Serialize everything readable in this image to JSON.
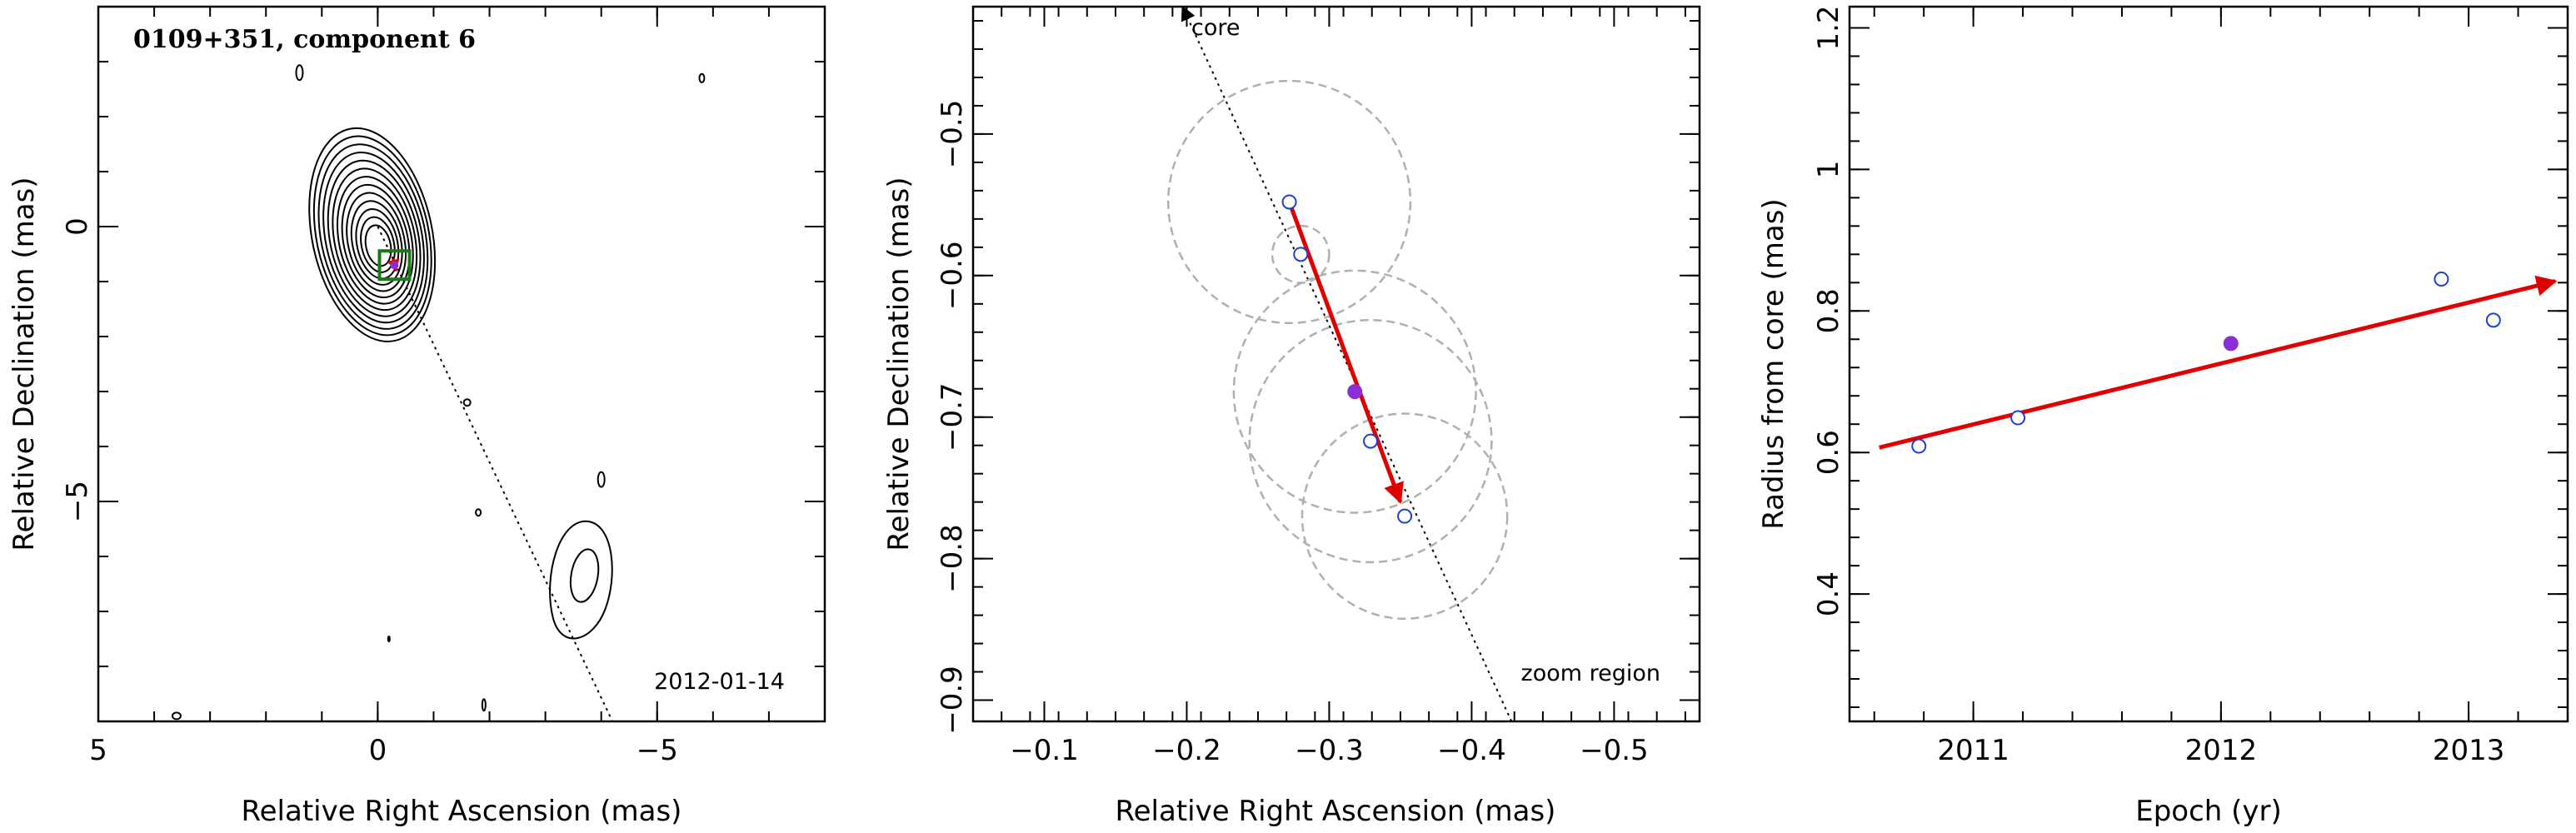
{
  "chart_data": [
    {
      "type": "contour",
      "title": "0109+351, component 6",
      "date_label": "2012-01-14",
      "xlabel": "Relative Right Ascension (mas)",
      "ylabel": "Relative Declination (mas)",
      "xlim": [
        5,
        -8
      ],
      "ylim": [
        -9,
        4
      ],
      "x_ticks": [
        5,
        0,
        -5
      ],
      "y_ticks": [
        0,
        -5
      ],
      "contour_centers": [
        {
          "x": 0.1,
          "y": -0.15
        },
        {
          "x": -3.7,
          "y": -6.5
        }
      ],
      "contour_levels": 13,
      "component_marker": {
        "x": -0.3,
        "y": -0.7
      },
      "jet_line": {
        "from": [
          0.0,
          0.0
        ],
        "to": [
          -4.2,
          -9.0
        ]
      },
      "colors": {
        "marker_box": "#1a7a1a",
        "marker_fill": "#8a2fd6",
        "arrow": "#e00000"
      }
    },
    {
      "type": "scatter",
      "xlabel": "Relative Right Ascension (mas)",
      "ylabel": "Relative Declination (mas)",
      "xlim": [
        -0.05,
        -0.56
      ],
      "ylim": [
        -0.915,
        -0.41
      ],
      "x_ticks": [
        -0.1,
        -0.2,
        -0.3,
        -0.4,
        -0.5
      ],
      "x_tick_labels": [
        "−0.1",
        "−0.2",
        "−0.3",
        "−0.4",
        "−0.5"
      ],
      "y_ticks": [
        -0.5,
        -0.6,
        -0.7,
        -0.8,
        -0.9
      ],
      "y_tick_labels": [
        "−0.5",
        "−0.6",
        "−0.7",
        "−0.8",
        "−0.9"
      ],
      "points": [
        {
          "x": -0.272,
          "y": -0.548,
          "r": 0.085,
          "filled": false
        },
        {
          "x": -0.28,
          "y": -0.585,
          "r": 0.02,
          "filled": false
        },
        {
          "x": -0.318,
          "y": -0.682,
          "r": 0.085,
          "filled": true
        },
        {
          "x": -0.329,
          "y": -0.717,
          "r": 0.085,
          "filled": false
        },
        {
          "x": -0.353,
          "y": -0.77,
          "r": 0.072,
          "filled": false
        }
      ],
      "motion_arrow": {
        "from": [
          -0.272,
          -0.548
        ],
        "to": [
          -0.35,
          -0.76
        ]
      },
      "core_line": {
        "from": [
          -0.197,
          -0.41
        ],
        "to": [
          -0.428,
          -0.915
        ]
      },
      "annotations": {
        "core_label": "core",
        "zoom_label": "zoom region"
      },
      "colors": {
        "point": "#1f3fd6",
        "filled_point": "#8a2fd6",
        "arrow": "#e00000",
        "circle": "#b0b0b0"
      }
    },
    {
      "type": "scatter",
      "xlabel": "Epoch (yr)",
      "ylabel": "Radius from core (mas)",
      "xlim": [
        2010.5,
        2013.4
      ],
      "ylim": [
        0.22,
        1.23
      ],
      "x_ticks": [
        2011,
        2012,
        2013
      ],
      "y_ticks": [
        0.4,
        0.6,
        0.8,
        1.0,
        1.2
      ],
      "y_tick_labels": [
        "0.4",
        "0.6",
        "0.8",
        "1",
        "1.2"
      ],
      "points": [
        {
          "x": 2010.78,
          "y": 0.609,
          "filled": false
        },
        {
          "x": 2011.18,
          "y": 0.649,
          "filled": false
        },
        {
          "x": 2012.04,
          "y": 0.754,
          "filled": true
        },
        {
          "x": 2012.89,
          "y": 0.845,
          "filled": false
        },
        {
          "x": 2013.1,
          "y": 0.787,
          "filled": false
        }
      ],
      "fit_arrow": {
        "from": [
          2010.62,
          0.607
        ],
        "to": [
          2013.35,
          0.842
        ]
      },
      "colors": {
        "point": "#1f3fd6",
        "filled_point": "#8a2fd6",
        "arrow": "#e00000"
      }
    }
  ]
}
